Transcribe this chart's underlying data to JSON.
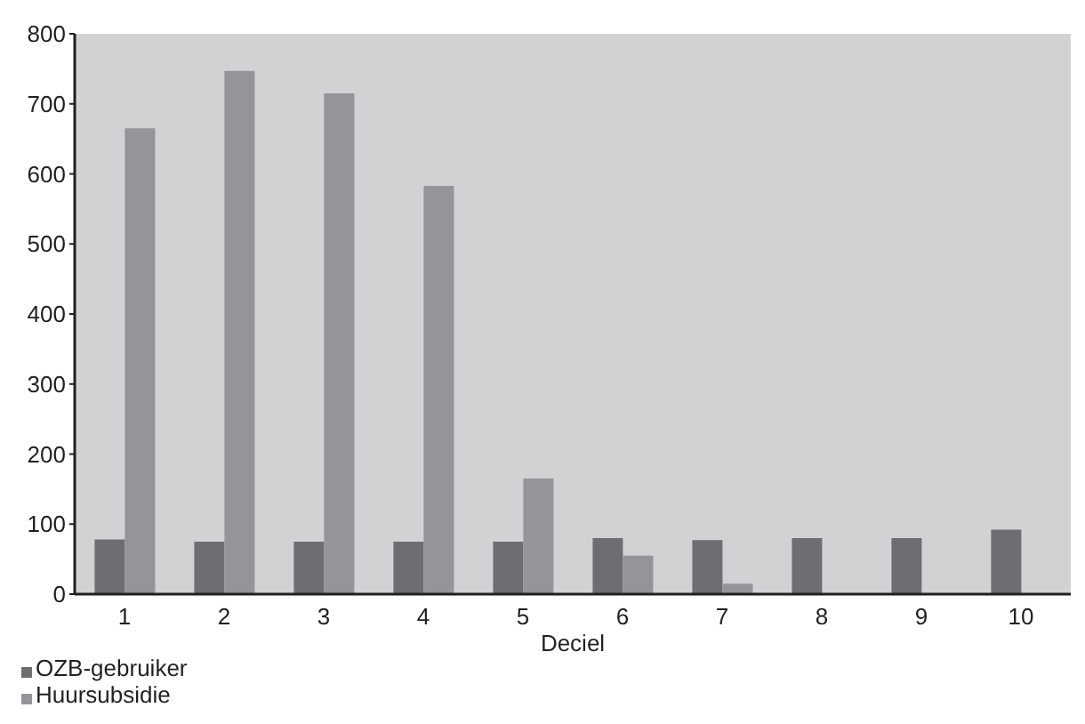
{
  "chart_data": {
    "type": "bar",
    "xlabel": "Deciel",
    "categories": [
      "1",
      "2",
      "3",
      "4",
      "5",
      "6",
      "7",
      "8",
      "9",
      "10"
    ],
    "series": [
      {
        "name": "OZB-gebruiker",
        "color": "#6d6e71",
        "values": [
          78,
          75,
          75,
          75,
          75,
          80,
          77,
          80,
          80,
          92
        ]
      },
      {
        "name": "Huursubsidie",
        "color": "#939598",
        "values": [
          665,
          747,
          715,
          583,
          165,
          55,
          15,
          0,
          0,
          0
        ]
      }
    ],
    "ylim": [
      0,
      800
    ],
    "yticks": [
      0,
      100,
      200,
      300,
      400,
      500,
      600,
      700,
      800
    ],
    "grid": false,
    "legend": "bottom left"
  }
}
